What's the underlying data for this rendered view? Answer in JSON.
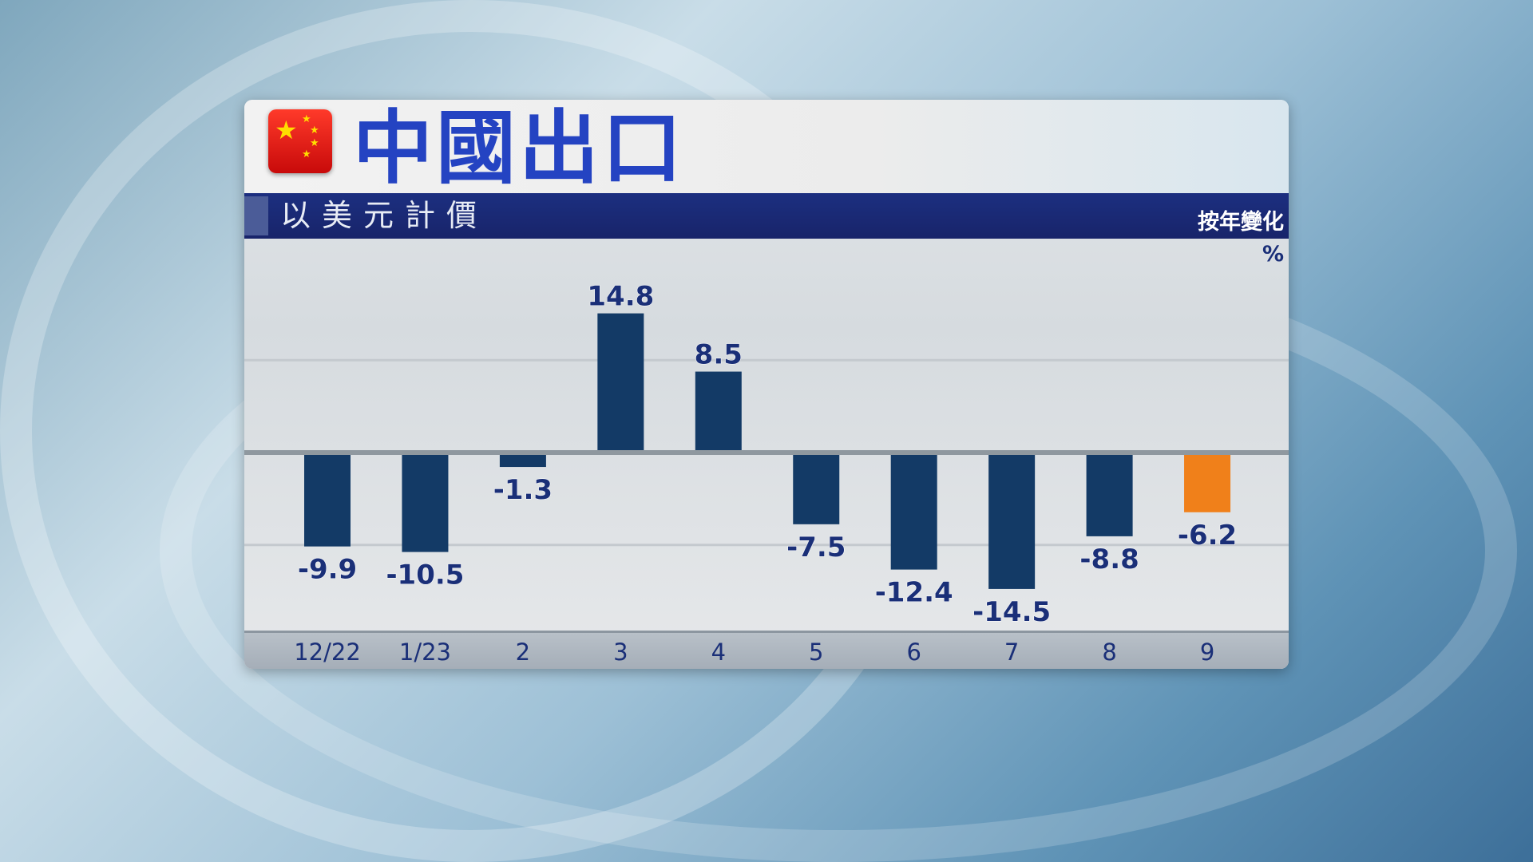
{
  "header": {
    "title": "中國出口",
    "subtitle": "以美元計價",
    "measure": "按年變化",
    "unit": "%",
    "flag_icon": "china-flag-icon"
  },
  "colors": {
    "bar": "#133a66",
    "highlight": "#f0801a",
    "label": "#1a2f78",
    "title": "#2443c2"
  },
  "chart_data": {
    "type": "bar",
    "title": "中國出口",
    "subtitle": "以美元計價",
    "ylabel": "%",
    "categories": [
      "12/22",
      "1/23",
      "2",
      "3",
      "4",
      "5",
      "6",
      "7",
      "8",
      "9"
    ],
    "values": [
      -9.9,
      -10.5,
      -1.3,
      14.8,
      8.5,
      -7.5,
      -12.4,
      -14.5,
      -8.8,
      -6.2
    ],
    "highlight_index": 9,
    "grid": true
  }
}
